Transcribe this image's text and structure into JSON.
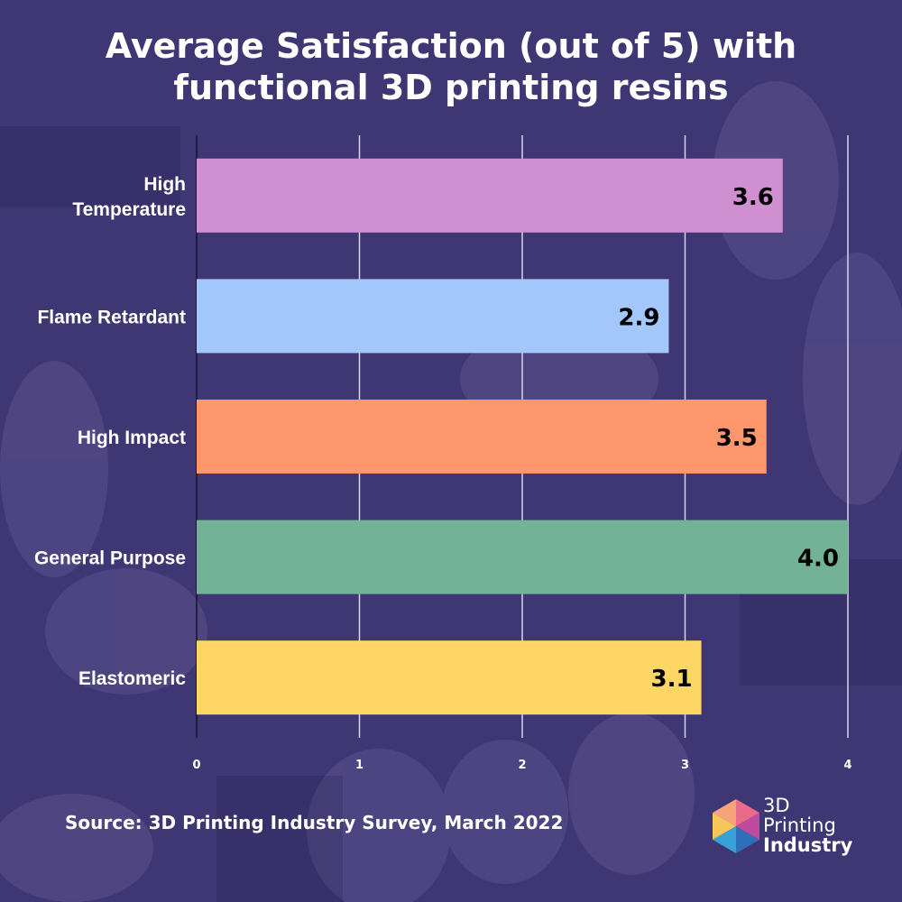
{
  "title": {
    "line1": "Average Satisfaction (out of 5) with",
    "line2": "functional 3D printing resins"
  },
  "source": "Source: 3D Printing Industry Survey, March 2022",
  "brand": {
    "line1": "3D",
    "line2": "Printing",
    "line3": "Industry"
  },
  "colors": {
    "background": "#3f3674",
    "gridline": "#d9d5ea",
    "axis": "#14122a"
  },
  "chart_data": {
    "type": "bar",
    "orientation": "horizontal",
    "title": "Average Satisfaction (out of 5) with functional 3D printing resins",
    "xlabel": "",
    "ylabel": "",
    "xlim": [
      0,
      4
    ],
    "xticks": [
      0,
      1,
      2,
      3,
      4
    ],
    "grid": true,
    "categories": [
      {
        "label_lines": [
          "High",
          "Temperature"
        ],
        "value": 3.6,
        "display": "3.6",
        "color": "#cf8fd0"
      },
      {
        "label_lines": [
          "Flame Retardant"
        ],
        "value": 2.9,
        "display": "2.9",
        "color": "#a3c6fb"
      },
      {
        "label_lines": [
          "High Impact"
        ],
        "value": 3.5,
        "display": "3.5",
        "color": "#fe966c"
      },
      {
        "label_lines": [
          "General Purpose"
        ],
        "value": 4.0,
        "display": "4.0",
        "color": "#73b295"
      },
      {
        "label_lines": [
          "Elastomeric"
        ],
        "value": 3.1,
        "display": "3.1",
        "color": "#fed666"
      }
    ]
  }
}
